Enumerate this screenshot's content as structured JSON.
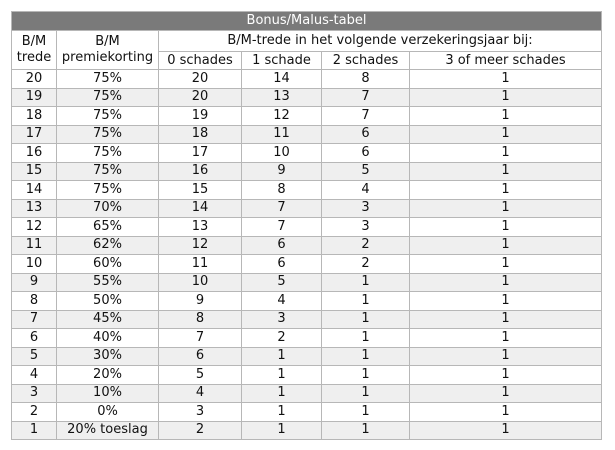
{
  "table": {
    "title": "Bonus/Malus-tabel",
    "header": {
      "col0_line1": "B/M",
      "col0_line2": "trede",
      "col1_line1": "B/M",
      "col1_line2": "premiekorting",
      "group": "B/M-trede in het volgende verzekeringsjaar bij:",
      "sub": [
        "0 schades",
        "1 schade",
        "2 schades",
        "3 of meer schades"
      ]
    },
    "rows": [
      [
        "20",
        "75%",
        "20",
        "14",
        "8",
        "1"
      ],
      [
        "19",
        "75%",
        "20",
        "13",
        "7",
        "1"
      ],
      [
        "18",
        "75%",
        "19",
        "12",
        "7",
        "1"
      ],
      [
        "17",
        "75%",
        "18",
        "11",
        "6",
        "1"
      ],
      [
        "16",
        "75%",
        "17",
        "10",
        "6",
        "1"
      ],
      [
        "15",
        "75%",
        "16",
        "9",
        "5",
        "1"
      ],
      [
        "14",
        "75%",
        "15",
        "8",
        "4",
        "1"
      ],
      [
        "13",
        "70%",
        "14",
        "7",
        "3",
        "1"
      ],
      [
        "12",
        "65%",
        "13",
        "7",
        "3",
        "1"
      ],
      [
        "11",
        "62%",
        "12",
        "6",
        "2",
        "1"
      ],
      [
        "10",
        "60%",
        "11",
        "6",
        "2",
        "1"
      ],
      [
        "9",
        "55%",
        "10",
        "5",
        "1",
        "1"
      ],
      [
        "8",
        "50%",
        "9",
        "4",
        "1",
        "1"
      ],
      [
        "7",
        "45%",
        "8",
        "3",
        "1",
        "1"
      ],
      [
        "6",
        "40%",
        "7",
        "2",
        "1",
        "1"
      ],
      [
        "5",
        "30%",
        "6",
        "1",
        "1",
        "1"
      ],
      [
        "4",
        "20%",
        "5",
        "1",
        "1",
        "1"
      ],
      [
        "3",
        "10%",
        "4",
        "1",
        "1",
        "1"
      ],
      [
        "2",
        "0%",
        "3",
        "1",
        "1",
        "1"
      ],
      [
        "1",
        "20% toeslag",
        "2",
        "1",
        "1",
        "1"
      ]
    ]
  }
}
